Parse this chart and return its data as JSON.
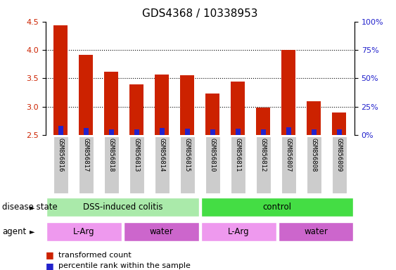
{
  "title": "GDS4368 / 10338953",
  "samples": [
    "GSM856816",
    "GSM856817",
    "GSM856818",
    "GSM856813",
    "GSM856814",
    "GSM856815",
    "GSM856810",
    "GSM856811",
    "GSM856812",
    "GSM856807",
    "GSM856808",
    "GSM856809"
  ],
  "transformed_counts": [
    4.43,
    3.91,
    3.62,
    3.39,
    3.57,
    3.55,
    3.23,
    3.44,
    2.98,
    4.0,
    3.1,
    2.9
  ],
  "percentile_ranks_pct": [
    8.0,
    6.0,
    5.0,
    5.0,
    6.0,
    5.5,
    5.0,
    5.5,
    5.0,
    7.0,
    5.0,
    5.0
  ],
  "bar_bottom": 2.5,
  "ylim_left": [
    2.5,
    4.5
  ],
  "ylim_right": [
    0,
    100
  ],
  "yticks_left": [
    2.5,
    3.0,
    3.5,
    4.0,
    4.5
  ],
  "yticks_right": [
    0,
    25,
    50,
    75,
    100
  ],
  "red_color": "#cc2200",
  "blue_color": "#2222cc",
  "disease_state_groups": [
    {
      "label": "DSS-induced colitis",
      "start": 0,
      "end": 6,
      "color": "#aaeaaa"
    },
    {
      "label": "control",
      "start": 6,
      "end": 12,
      "color": "#44dd44"
    }
  ],
  "agent_groups": [
    {
      "label": "L-Arg",
      "start": 0,
      "end": 3,
      "color": "#ee99ee"
    },
    {
      "label": "water",
      "start": 3,
      "end": 6,
      "color": "#cc66cc"
    },
    {
      "label": "L-Arg",
      "start": 6,
      "end": 9,
      "color": "#ee99ee"
    },
    {
      "label": "water",
      "start": 9,
      "end": 12,
      "color": "#cc66cc"
    }
  ],
  "disease_state_label": "disease state",
  "agent_label": "agent",
  "legend_items": [
    "transformed count",
    "percentile rank within the sample"
  ],
  "title_fontsize": 11,
  "bar_width": 0.55,
  "xtick_fontsize": 6.5,
  "ytick_fontsize": 8,
  "label_fontsize": 8.5,
  "legend_fontsize": 8,
  "gridline_ticks": [
    3.0,
    3.5,
    4.0
  ]
}
